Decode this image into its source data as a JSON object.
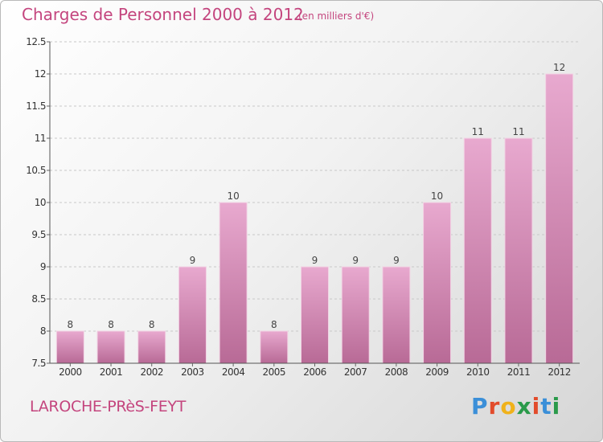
{
  "header": {
    "title": "Charges de Personnel 2000 à 2012",
    "subtitle": "(en milliers d'€)"
  },
  "footer": {
    "commune": "LAROCHE-PRèS-FEYT",
    "logo_letters": [
      "P",
      "r",
      "o",
      "x",
      "i",
      "t",
      "i"
    ],
    "logo_colors": [
      "#3b8fd8",
      "#e24b2b",
      "#f0b21b",
      "#2a9a4a",
      "#e24b2b",
      "#3b8fd8",
      "#2a9a4a"
    ]
  },
  "colors": {
    "bar": "#d98ab8",
    "title": "#c4457e",
    "axis_text": "#333333",
    "grid": "#c8c8c8"
  },
  "chart_data": {
    "type": "bar",
    "title": "Charges de Personnel 2000 à 2012",
    "subtitle": "(en milliers d'€)",
    "categories": [
      "2000",
      "2001",
      "2002",
      "2003",
      "2004",
      "2005",
      "2006",
      "2007",
      "2008",
      "2009",
      "2010",
      "2011",
      "2012"
    ],
    "values": [
      8,
      8,
      8,
      9,
      10,
      8,
      9,
      9,
      9,
      10,
      11,
      11,
      12
    ],
    "ylim": [
      7.5,
      12.5
    ],
    "yticks": [
      7.5,
      8,
      8.5,
      9,
      9.5,
      10,
      10.5,
      11,
      11.5,
      12,
      12.5
    ],
    "ytick_labels": [
      "7.5",
      "8",
      "8.5",
      "9",
      "9.5",
      "10",
      "10.5",
      "11",
      "11.5",
      "12",
      "12.5"
    ],
    "grid": true,
    "grid_style": "dashed horizontal",
    "data_labels": [
      "8",
      "8",
      "8",
      "9",
      "10",
      "8",
      "9",
      "9",
      "9",
      "10",
      "11",
      "11",
      "12"
    ]
  }
}
